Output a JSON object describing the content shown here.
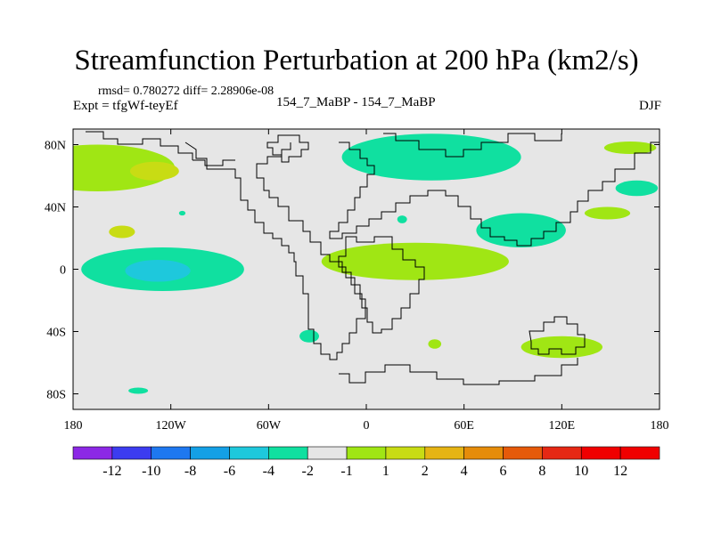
{
  "header": {
    "title": "Streamfunction Perturbation at 200 hPa (km2/s)",
    "stat_line": "rmsd= 0.780272 diff= 2.28906e-08",
    "left_label": "Expt = tfgWf-teyEf",
    "center_label": "154_7_MaBP - 154_7_MaBP",
    "right_label": "DJF"
  },
  "chart_data": {
    "type": "heatmap",
    "title": "Streamfunction Perturbation at 200 hPa (km2/s)",
    "projection": "cylindrical equidistant",
    "lon_range": [
      -180,
      180
    ],
    "lat_range": [
      -90,
      90
    ],
    "x_ticks": [
      {
        "value": -180,
        "label": "180"
      },
      {
        "value": -120,
        "label": "120W"
      },
      {
        "value": -60,
        "label": "60W"
      },
      {
        "value": 0,
        "label": "0"
      },
      {
        "value": 60,
        "label": "60E"
      },
      {
        "value": 120,
        "label": "120E"
      },
      {
        "value": 180,
        "label": "180"
      }
    ],
    "y_ticks": [
      {
        "value": 80,
        "label": "80N"
      },
      {
        "value": 40,
        "label": "40N"
      },
      {
        "value": 0,
        "label": "0"
      },
      {
        "value": -40,
        "label": "40S"
      },
      {
        "value": -80,
        "label": "80S"
      }
    ],
    "background_color": "#e6e6e6",
    "colorbar": {
      "labels": [
        "-12",
        "-10",
        "-8",
        "-6",
        "-4",
        "-2",
        "-1",
        "1",
        "2",
        "4",
        "6",
        "8",
        "10",
        "12"
      ],
      "colors": [
        "#8c28e6",
        "#3c3cf0",
        "#1e78f0",
        "#14a0e6",
        "#1ec8dc",
        "#10e0a0",
        "#e6e6e6",
        "#a0e614",
        "#c8dc14",
        "#e6b414",
        "#e68c0a",
        "#e65a0a",
        "#e62814",
        "#f00000"
      ]
    },
    "anomalies": [
      {
        "name": "north-pacific-positive",
        "level": "1 to 2",
        "color": "#a0e614",
        "lon": -165,
        "lat": 65,
        "lon_width": 95,
        "lat_height": 30
      },
      {
        "name": "north-pacific-core",
        "level": "2 to 4",
        "color": "#c8dc14",
        "lon": -130,
        "lat": 63,
        "lon_width": 30,
        "lat_height": 12
      },
      {
        "name": "northeast-pacific-core",
        "level": "2 to 4",
        "color": "#c8dc14",
        "lon": -150,
        "lat": 24,
        "lon_width": 16,
        "lat_height": 8
      },
      {
        "name": "tropical-pacific-negative",
        "level": "-1 to -2",
        "color": "#10e0a0",
        "lon": -125,
        "lat": 0,
        "lon_width": 100,
        "lat_height": 28
      },
      {
        "name": "tropical-pacific-core",
        "level": "-2 to -4",
        "color": "#1ec8dc",
        "lon": -128,
        "lat": -1,
        "lon_width": 40,
        "lat_height": 14
      },
      {
        "name": "arctic-eurasia-negative",
        "level": "-1 to -2",
        "color": "#10e0a0",
        "lon": 40,
        "lat": 72,
        "lon_width": 110,
        "lat_height": 30
      },
      {
        "name": "asia-negative",
        "level": "-1 to -2",
        "color": "#10e0a0",
        "lon": 95,
        "lat": 25,
        "lon_width": 55,
        "lat_height": 22
      },
      {
        "name": "africa-positive",
        "level": "1 to 2",
        "color": "#a0e614",
        "lon": 30,
        "lat": 5,
        "lon_width": 115,
        "lat_height": 24
      },
      {
        "name": "pacific-positive-east",
        "level": "1 to 2",
        "color": "#a0e614",
        "lon": 148,
        "lat": 36,
        "lon_width": 28,
        "lat_height": 8
      },
      {
        "name": "north-pacific-negative",
        "level": "-1 to -2",
        "color": "#10e0a0",
        "lon": 166,
        "lat": 52,
        "lon_width": 26,
        "lat_height": 10
      },
      {
        "name": "bering-positive",
        "level": "1 to 2",
        "color": "#a0e614",
        "lon": 162,
        "lat": 78,
        "lon_width": 32,
        "lat_height": 8
      },
      {
        "name": "south-indian-positive",
        "level": "1 to 2",
        "color": "#a0e614",
        "lon": 120,
        "lat": -50,
        "lon_width": 50,
        "lat_height": 14
      },
      {
        "name": "south-atlantic-negative",
        "level": "-1 to -2",
        "color": "#10e0a0",
        "lon": -35,
        "lat": -43,
        "lon_width": 12,
        "lat_height": 8
      },
      {
        "name": "south-indian-small-positive",
        "level": "1 to 2",
        "color": "#a0e614",
        "lon": 42,
        "lat": -48,
        "lon_width": 8,
        "lat_height": 6
      },
      {
        "name": "pacific-small-negative",
        "level": "-1 to -2",
        "color": "#10e0a0",
        "lon": -140,
        "lat": -78,
        "lon_width": 12,
        "lat_height": 4
      },
      {
        "name": "pacific-dot-negative",
        "level": "-1 to -2",
        "color": "#10e0a0",
        "lon": -113,
        "lat": 36,
        "lon_width": 4,
        "lat_height": 3
      },
      {
        "name": "asia-dot-negative",
        "level": "-1 to -2",
        "color": "#10e0a0",
        "lon": 22,
        "lat": 32,
        "lon_width": 6,
        "lat_height": 5
      }
    ]
  }
}
